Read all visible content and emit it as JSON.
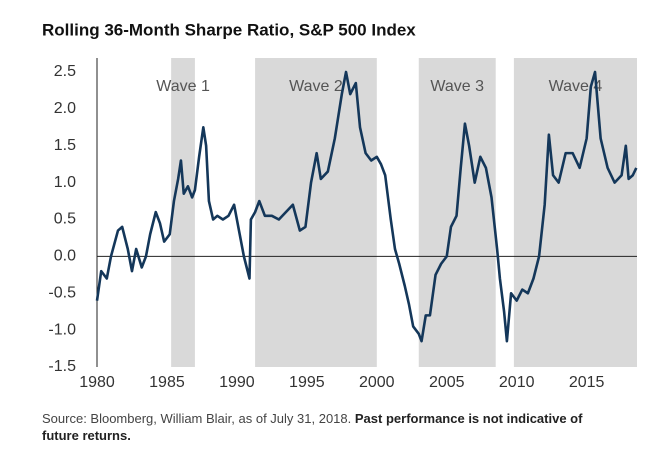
{
  "chart_data": {
    "type": "line",
    "title": "Rolling 36-Month Sharpe Ratio, S&P 500 Index",
    "source": "Source: Bloomberg, William Blair, as of July 31, 2018.",
    "disclaimer": "Past performance is not indicative of future returns.",
    "shaded_regions": [
      {
        "label": "Wave 1",
        "start": 1985.3,
        "end": 1987.0
      },
      {
        "label": "Wave 2",
        "start": 1991.3,
        "end": 2000.0
      },
      {
        "label": "Wave 3",
        "start": 2003.0,
        "end": 2008.5
      },
      {
        "label": "Wave 4",
        "start": 2009.8,
        "end": 2018.6
      }
    ],
    "shade_color": "#d9d9d9",
    "x": [
      1980,
      1980.3,
      1980.7,
      1981,
      1981.5,
      1981.8,
      1982.2,
      1982.5,
      1982.8,
      1983.2,
      1983.5,
      1983.8,
      1984.2,
      1984.5,
      1984.8,
      1985.2,
      1985.5,
      1985.8,
      1986.0,
      1986.2,
      1986.5,
      1986.8,
      1987.0,
      1987.3,
      1987.6,
      1987.8,
      1988.0,
      1988.3,
      1988.6,
      1989.0,
      1989.4,
      1989.8,
      1990.2,
      1990.5,
      1990.9,
      1991.0,
      1991.3,
      1991.6,
      1992.0,
      1992.5,
      1993.0,
      1993.5,
      1994.0,
      1994.5,
      1994.9,
      1995.3,
      1995.7,
      1996.0,
      1996.5,
      1997.0,
      1997.5,
      1997.8,
      1998.1,
      1998.5,
      1998.8,
      1999.2,
      1999.6,
      2000.0,
      2000.3,
      2000.6,
      2001.0,
      2001.3,
      2001.6,
      2002.0,
      2002.3,
      2002.6,
      2003.0,
      2003.2,
      2003.5,
      2003.8,
      2004.2,
      2004.6,
      2005.0,
      2005.3,
      2005.7,
      2006.0,
      2006.3,
      2006.6,
      2007.0,
      2007.4,
      2007.8,
      2008.2,
      2008.6,
      2008.8,
      2009.1,
      2009.3,
      2009.6,
      2010.0,
      2010.4,
      2010.8,
      2011.2,
      2011.6,
      2012.0,
      2012.3,
      2012.6,
      2013.0,
      2013.5,
      2014.0,
      2014.5,
      2015.0,
      2015.3,
      2015.6,
      2016.0,
      2016.5,
      2017.0,
      2017.5,
      2017.8,
      2018.0,
      2018.3,
      2018.55
    ],
    "series": [
      {
        "name": "Sharpe Ratio",
        "color": "#14375a",
        "values": [
          -0.6,
          -0.2,
          -0.3,
          0.0,
          0.35,
          0.4,
          0.1,
          -0.2,
          0.1,
          -0.15,
          0.0,
          0.3,
          0.6,
          0.45,
          0.2,
          0.3,
          0.75,
          1.05,
          1.3,
          0.85,
          0.95,
          0.8,
          0.9,
          1.35,
          1.75,
          1.5,
          0.75,
          0.5,
          0.55,
          0.5,
          0.55,
          0.7,
          0.3,
          0.0,
          -0.3,
          0.5,
          0.6,
          0.75,
          0.55,
          0.55,
          0.5,
          0.6,
          0.7,
          0.35,
          0.4,
          1.0,
          1.4,
          1.05,
          1.15,
          1.6,
          2.2,
          2.5,
          2.2,
          2.35,
          1.75,
          1.4,
          1.3,
          1.35,
          1.25,
          1.1,
          0.5,
          0.1,
          -0.1,
          -0.4,
          -0.65,
          -0.95,
          -1.05,
          -1.15,
          -0.8,
          -0.8,
          -0.25,
          -0.1,
          0.0,
          0.4,
          0.55,
          1.2,
          1.8,
          1.5,
          1.0,
          1.35,
          1.2,
          0.8,
          0.1,
          -0.3,
          -0.75,
          -1.15,
          -0.5,
          -0.6,
          -0.45,
          -0.5,
          -0.3,
          0.0,
          0.7,
          1.65,
          1.1,
          1.0,
          1.4,
          1.4,
          1.2,
          1.6,
          2.3,
          2.5,
          1.6,
          1.2,
          1.0,
          1.1,
          1.5,
          1.05,
          1.1,
          1.2
        ]
      }
    ],
    "xlim": [
      1980,
      2018.6
    ],
    "xticks": [
      1980,
      1985,
      1990,
      1995,
      2000,
      2005,
      2010,
      2015
    ],
    "ylim": [
      -1.5,
      2.5
    ],
    "yticks": [
      {
        "value": 2.5,
        "label": "2.5"
      },
      {
        "value": 2,
        "label": "2.0"
      },
      1.5,
      {
        "value": 1,
        "label": "1.0"
      },
      0.5,
      {
        "value": 0,
        "label": "0.0"
      },
      -0.5,
      {
        "value": -1,
        "label": "-1.0"
      },
      -1.5
    ],
    "zero_line": true
  }
}
